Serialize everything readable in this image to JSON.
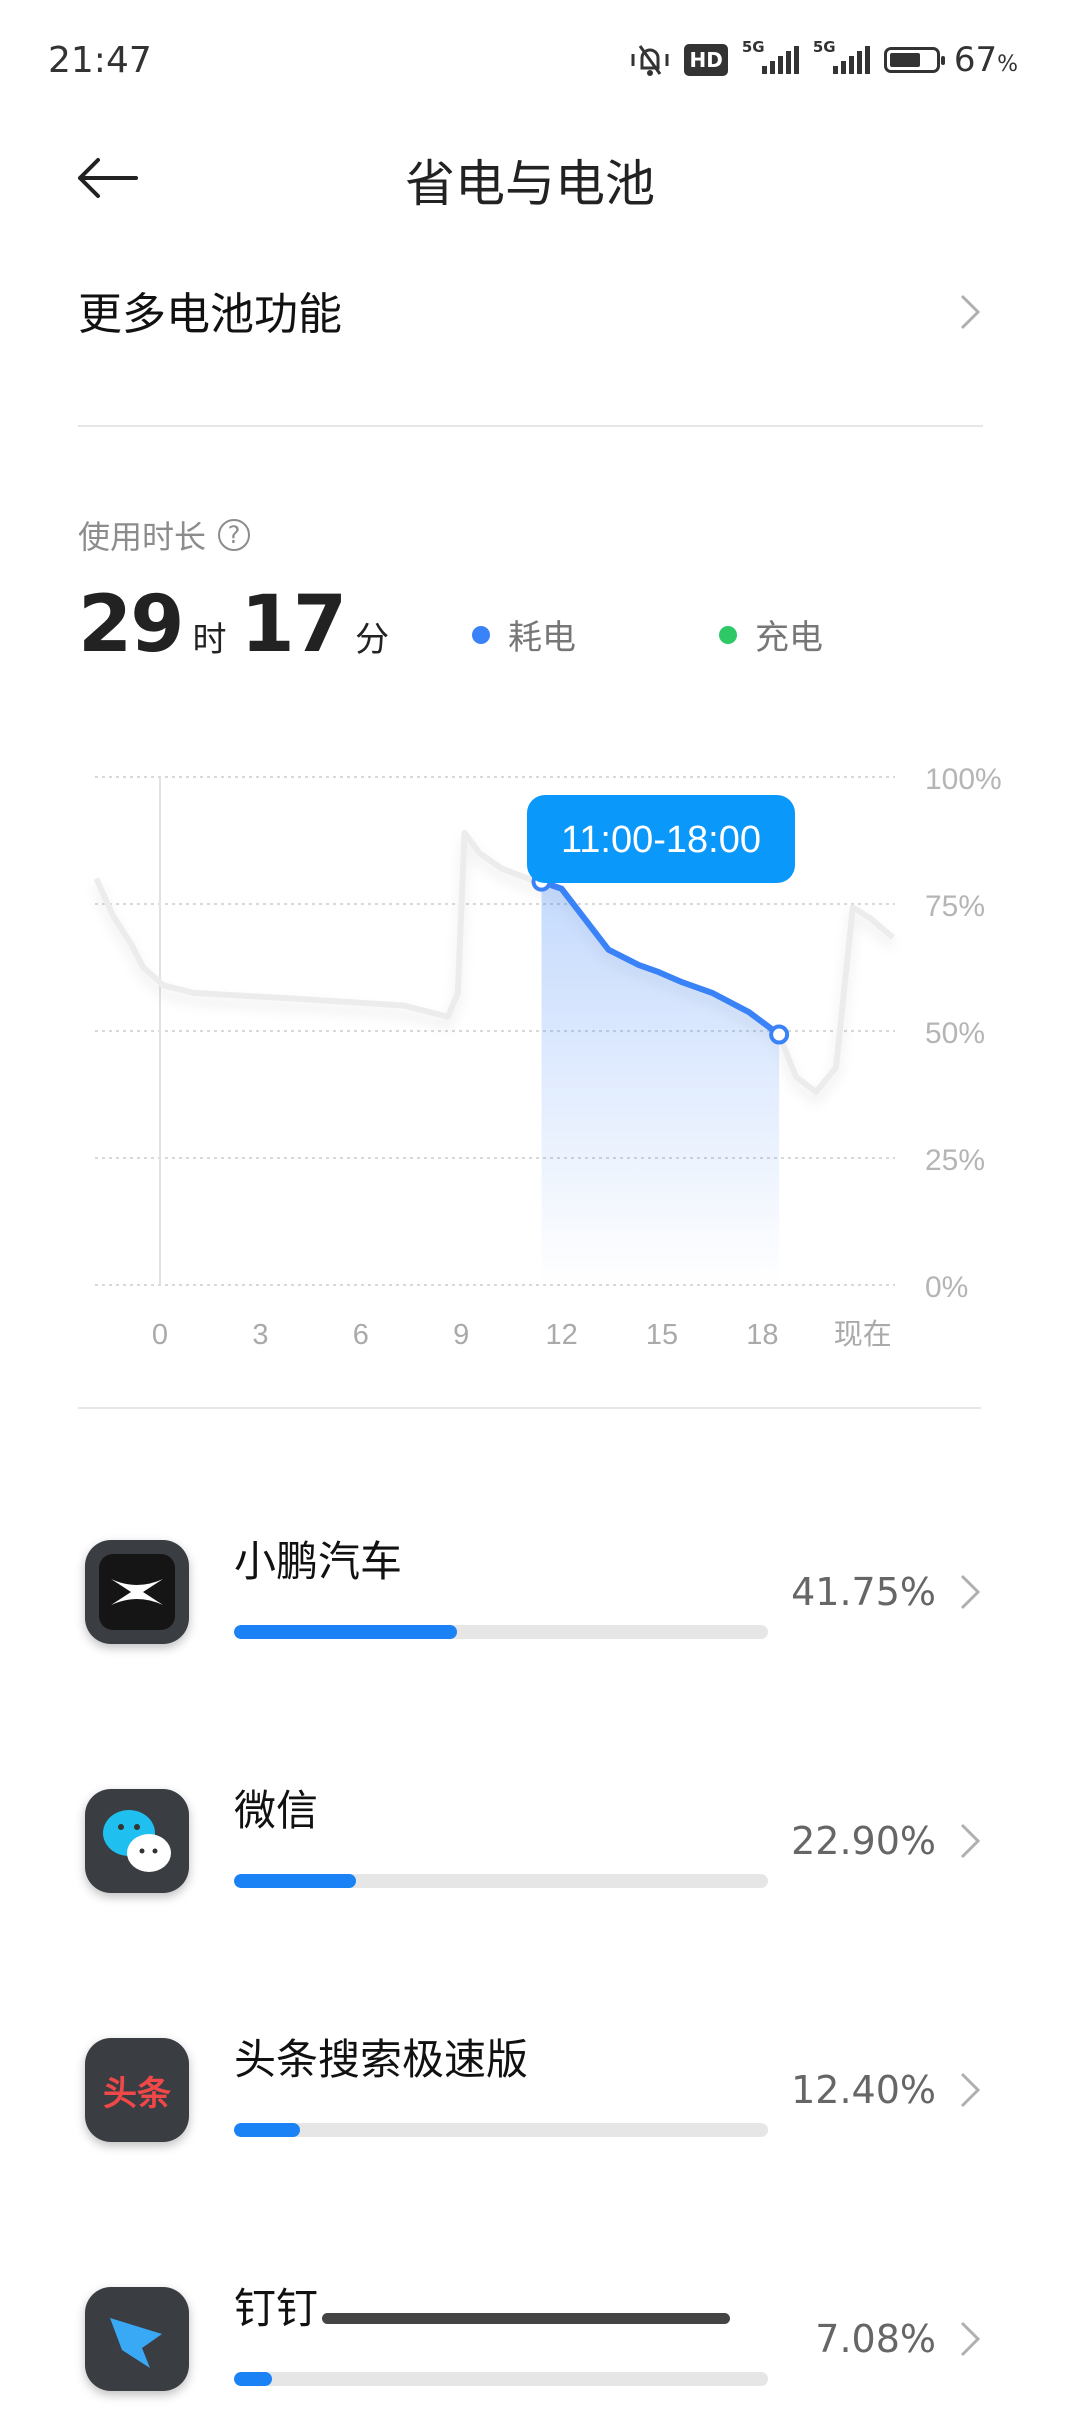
{
  "status_bar": {
    "time": "21:47",
    "hd_label": "HD",
    "net1": "5G",
    "net2": "5G",
    "battery_percent": 67,
    "battery_text": "67",
    "percent_sign": "%",
    "icons": [
      "mute-bell-icon",
      "hd-voice-icon",
      "signal-5g-icon",
      "signal-5g-icon",
      "battery-icon"
    ]
  },
  "header": {
    "title": "省电与电池",
    "back_icon": "arrow-left-icon"
  },
  "more_features": {
    "label": "更多电池功能"
  },
  "usage": {
    "label": "使用时长",
    "hours": "29",
    "hours_unit": "时",
    "minutes": "17",
    "minutes_unit": "分"
  },
  "legend": [
    {
      "label": "耗电",
      "color": "#3a82f7"
    },
    {
      "label": "充电",
      "color": "#2ec866"
    }
  ],
  "chart_data": {
    "type": "line",
    "x_ticks": [
      "0",
      "3",
      "6",
      "9",
      "12",
      "15",
      "18",
      "现在"
    ],
    "y_ticks": [
      "100%",
      "75%",
      "50%",
      "25%",
      "0%"
    ],
    "ylim": [
      0,
      100
    ],
    "grid": true,
    "tooltip": "11:00-18:00",
    "background_series": {
      "color": "#ececec",
      "points": [
        [
          -1.9,
          80
        ],
        [
          -1.4,
          72.6
        ],
        [
          -0.85,
          67
        ],
        [
          -0.5,
          62.5
        ],
        [
          0.1,
          59
        ],
        [
          1,
          57.5
        ],
        [
          4.2,
          56.3
        ],
        [
          7.3,
          55
        ],
        [
          8.6,
          52.8
        ],
        [
          8.9,
          57.5
        ],
        [
          9.1,
          89
        ],
        [
          9.55,
          85
        ],
        [
          10.2,
          82
        ],
        [
          11.4,
          79
        ],
        [
          12,
          78
        ],
        [
          13.4,
          66
        ],
        [
          14.3,
          63
        ],
        [
          14.9,
          61.6
        ],
        [
          15.6,
          59.6
        ],
        [
          16.5,
          57.5
        ],
        [
          17.6,
          53.7
        ],
        [
          18.5,
          49.3
        ],
        [
          19,
          41
        ],
        [
          19.6,
          38
        ],
        [
          20.2,
          42.8
        ],
        [
          20.7,
          74.3
        ],
        [
          21.2,
          72.3
        ],
        [
          21.9,
          68.4
        ]
      ]
    },
    "highlight_series": {
      "color": "#3a82f7",
      "points": [
        [
          11.4,
          79.4
        ],
        [
          12,
          78
        ],
        [
          13.4,
          66
        ],
        [
          14.3,
          63
        ],
        [
          14.9,
          61.6
        ],
        [
          15.6,
          59.6
        ],
        [
          16.5,
          57.5
        ],
        [
          17.6,
          53.7
        ],
        [
          18.5,
          49.3
        ]
      ]
    }
  },
  "apps": [
    {
      "name": "小鹏汽车",
      "percent_text": "41.75%",
      "percent": 41.75,
      "icon": "xpeng-icon"
    },
    {
      "name": "微信",
      "percent_text": "22.90%",
      "percent": 22.9,
      "icon": "wechat-icon"
    },
    {
      "name": "头条搜索极速版",
      "percent_text": "12.40%",
      "percent": 12.4,
      "icon": "toutiao-icon",
      "icon_text": "头条"
    },
    {
      "name": "钉钉",
      "percent_text": "7.08%",
      "percent": 7.08,
      "icon": "dingtalk-icon"
    }
  ]
}
